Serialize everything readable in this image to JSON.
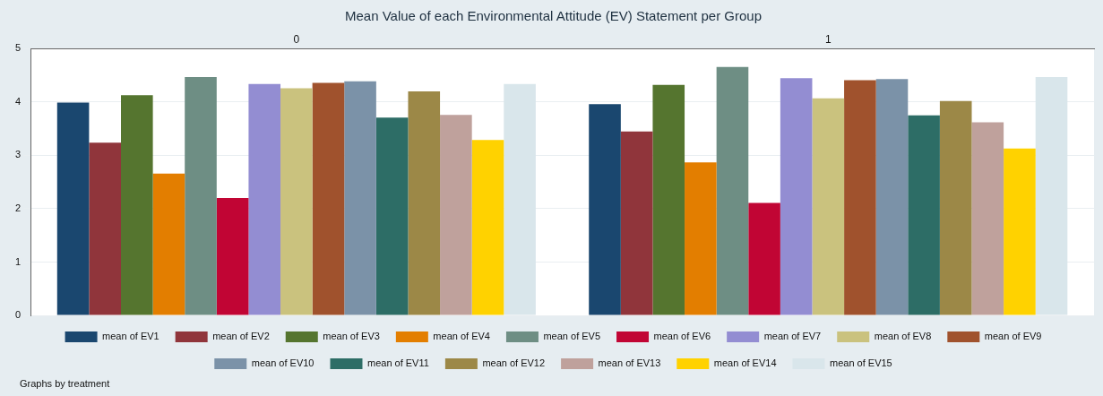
{
  "chart_data": {
    "type": "bar",
    "title": "Mean Value of each Environmental Attitude (EV) Statement per Group",
    "categories": [
      "0",
      "1"
    ],
    "ylim": [
      0,
      5
    ],
    "yticks": [
      0,
      1,
      2,
      3,
      4,
      5
    ],
    "grid": "y",
    "legend": "bottom",
    "annotations": [
      "Graphs by treatment"
    ],
    "series": [
      {
        "name": "mean of EV1",
        "color": "#1a476f",
        "values": [
          3.99,
          3.96
        ]
      },
      {
        "name": "mean of EV2",
        "color": "#90353b",
        "values": [
          3.24,
          3.45
        ]
      },
      {
        "name": "mean of EV3",
        "color": "#55752f",
        "values": [
          4.13,
          4.32
        ]
      },
      {
        "name": "mean of EV4",
        "color": "#e37e00",
        "values": [
          2.66,
          2.87
        ]
      },
      {
        "name": "mean of EV5",
        "color": "#6e8e84",
        "values": [
          4.47,
          4.66
        ]
      },
      {
        "name": "mean of EV6",
        "color": "#c10534",
        "values": [
          2.2,
          2.11
        ]
      },
      {
        "name": "mean of EV7",
        "color": "#938dd2",
        "values": [
          4.34,
          4.45
        ]
      },
      {
        "name": "mean of EV8",
        "color": "#cac27e",
        "values": [
          4.26,
          4.07
        ]
      },
      {
        "name": "mean of EV9",
        "color": "#a0522d",
        "values": [
          4.36,
          4.41
        ]
      },
      {
        "name": "mean of EV10",
        "color": "#7b92a8",
        "values": [
          4.39,
          4.43
        ]
      },
      {
        "name": "mean of EV11",
        "color": "#2d6d66",
        "values": [
          3.71,
          3.75
        ]
      },
      {
        "name": "mean of EV12",
        "color": "#9c8847",
        "values": [
          4.2,
          4.02
        ]
      },
      {
        "name": "mean of EV13",
        "color": "#bfa19c",
        "values": [
          3.76,
          3.62
        ]
      },
      {
        "name": "mean of EV14",
        "color": "#ffd200",
        "values": [
          3.29,
          3.13
        ]
      },
      {
        "name": "mean of EV15",
        "color": "#d9e6eb",
        "values": [
          4.34,
          4.47
        ]
      }
    ]
  }
}
